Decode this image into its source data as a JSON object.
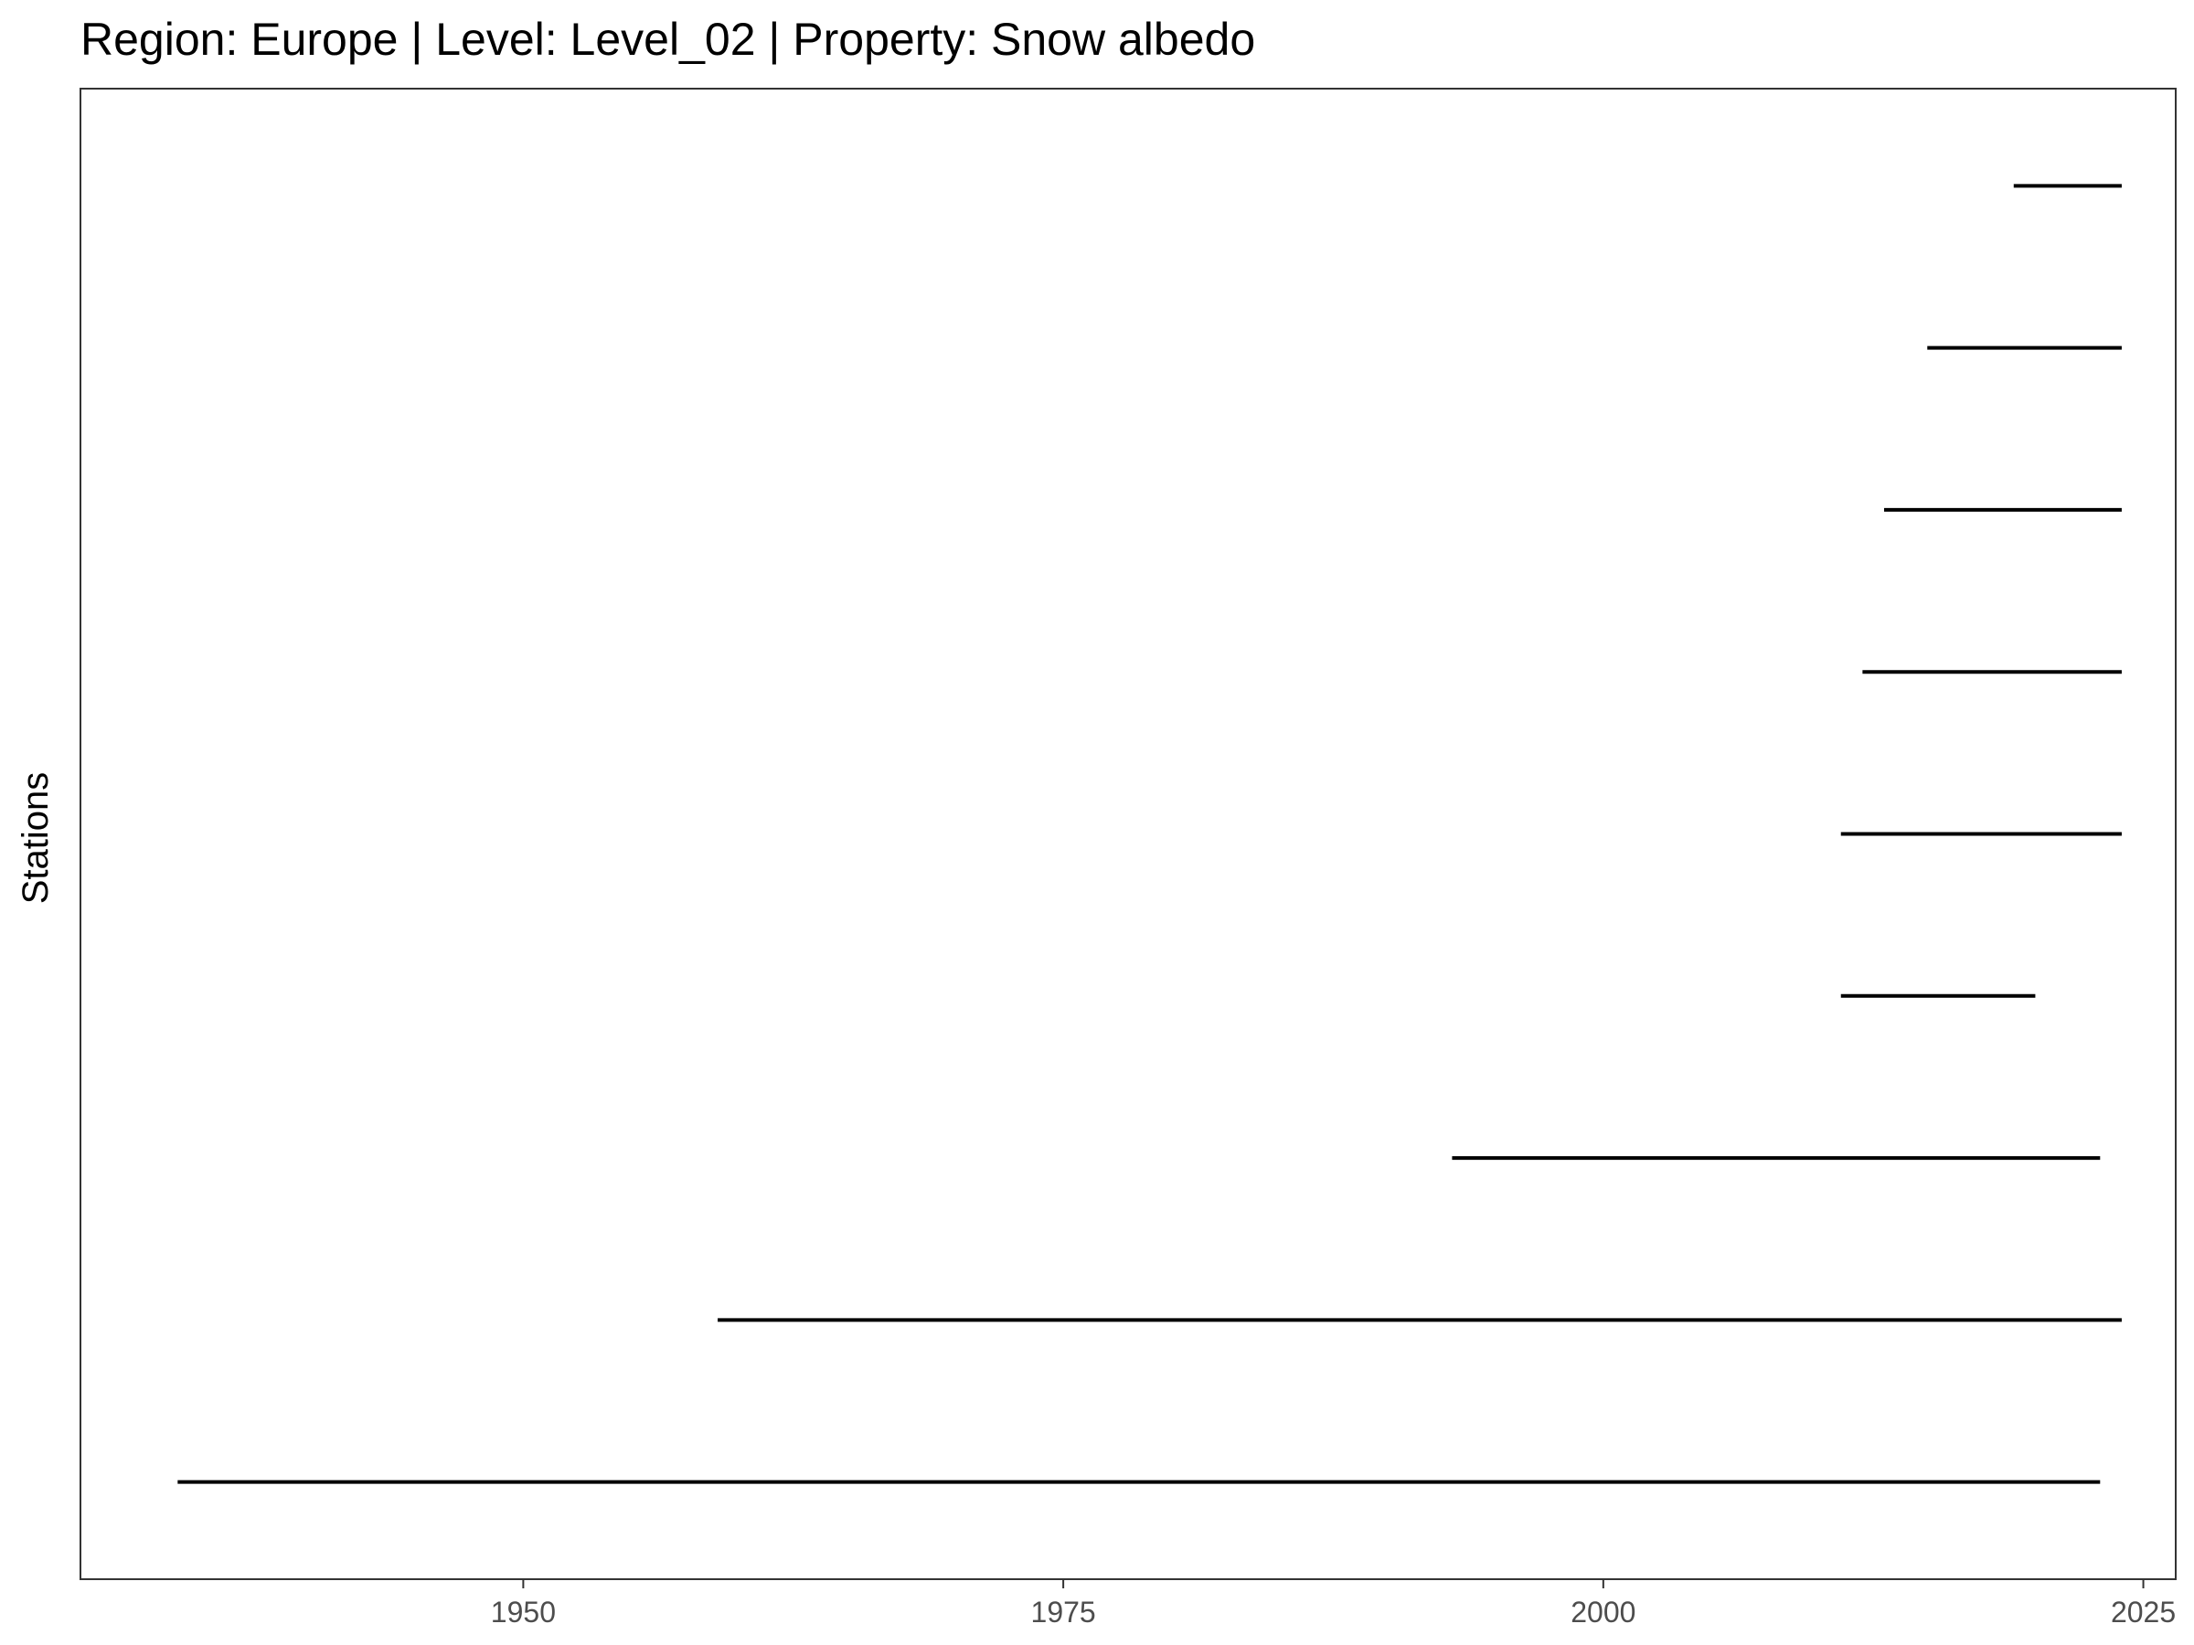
{
  "chart_data": {
    "type": "timeline",
    "title": "Region: Europe | Level: Level_02 | Property: Snow albedo",
    "xlabel": "",
    "ylabel": "Stations",
    "xlim": [
      1929.5,
      2026.5
    ],
    "xticks": [
      1950,
      1975,
      2000,
      2025
    ],
    "grid": false,
    "colors": {
      "segment": "#000000",
      "panel_border": "#333333",
      "tick_label": "#4d4d4d"
    },
    "segments": [
      {
        "start": 1934,
        "end": 2023
      },
      {
        "start": 1959,
        "end": 2024
      },
      {
        "start": 1993,
        "end": 2023
      },
      {
        "start": 2011,
        "end": 2020
      },
      {
        "start": 2011,
        "end": 2024
      },
      {
        "start": 2012,
        "end": 2024
      },
      {
        "start": 2013,
        "end": 2024
      },
      {
        "start": 2015,
        "end": 2024
      },
      {
        "start": 2019,
        "end": 2024
      }
    ]
  }
}
